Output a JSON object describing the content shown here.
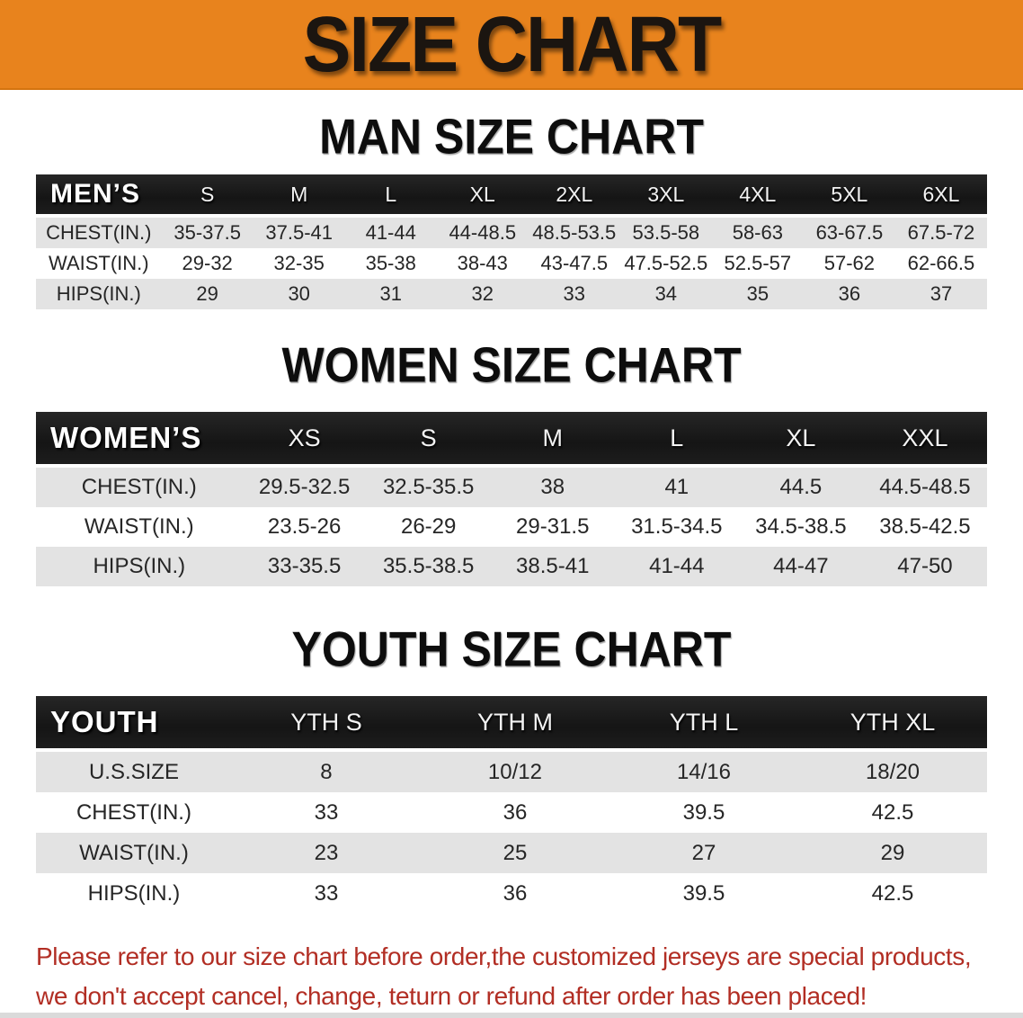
{
  "banner": {
    "title": "SIZE CHART"
  },
  "colors": {
    "banner_bg": "#E8831D",
    "banner_text": "#1B1510",
    "header_bar": "#191919",
    "row_alt": "#E3E3E3",
    "footer_text": "#B22E24"
  },
  "sections": [
    {
      "id": "men",
      "heading": "MAN SIZE CHART",
      "table": {
        "title": "MEN’S",
        "columns": [
          "S",
          "M",
          "L",
          "XL",
          "2XL",
          "3XL",
          "4XL",
          "5XL",
          "6XL"
        ],
        "rows": [
          {
            "label": "CHEST(IN.)",
            "values": [
              "35-37.5",
              "37.5-41",
              "41-44",
              "44-48.5",
              "48.5-53.5",
              "53.5-58",
              "58-63",
              "63-67.5",
              "67.5-72"
            ]
          },
          {
            "label": "WAIST(IN.)",
            "values": [
              "29-32",
              "32-35",
              "35-38",
              "38-43",
              "43-47.5",
              "47.5-52.5",
              "52.5-57",
              "57-62",
              "62-66.5"
            ]
          },
          {
            "label": "HIPS(IN.)",
            "values": [
              "29",
              "30",
              "31",
              "32",
              "33",
              "34",
              "35",
              "36",
              "37"
            ]
          }
        ]
      }
    },
    {
      "id": "women",
      "heading": "WOMEN SIZE CHART",
      "table": {
        "title": "WOMEN’S",
        "columns": [
          "XS",
          "S",
          "M",
          "L",
          "XL",
          "XXL"
        ],
        "rows": [
          {
            "label": "CHEST(IN.)",
            "values": [
              "29.5-32.5",
              "32.5-35.5",
              "38",
              "41",
              "44.5",
              "44.5-48.5"
            ]
          },
          {
            "label": "WAIST(IN.)",
            "values": [
              "23.5-26",
              "26-29",
              "29-31.5",
              "31.5-34.5",
              "34.5-38.5",
              "38.5-42.5"
            ]
          },
          {
            "label": "HIPS(IN.)",
            "values": [
              "33-35.5",
              "35.5-38.5",
              "38.5-41",
              "41-44",
              "44-47",
              "47-50"
            ]
          }
        ]
      }
    },
    {
      "id": "youth",
      "heading": "YOUTH SIZE CHART",
      "table": {
        "title": "YOUTH",
        "columns": [
          "YTH S",
          "YTH M",
          "YTH L",
          "YTH XL"
        ],
        "rows": [
          {
            "label": "U.S.SIZE",
            "values": [
              "8",
              "10/12",
              "14/16",
              "18/20"
            ]
          },
          {
            "label": "CHEST(IN.)",
            "values": [
              "33",
              "36",
              "39.5",
              "42.5"
            ]
          },
          {
            "label": "WAIST(IN.)",
            "values": [
              "23",
              "25",
              "27",
              "29"
            ]
          },
          {
            "label": "HIPS(IN.)",
            "values": [
              "33",
              "36",
              "39.5",
              "42.5"
            ]
          }
        ]
      }
    }
  ],
  "footer": {
    "line1": "Please refer to our size chart before order,the customized jerseys are special products,",
    "line2": "we don't accept cancel, change, teturn or refund after order has been placed!"
  }
}
